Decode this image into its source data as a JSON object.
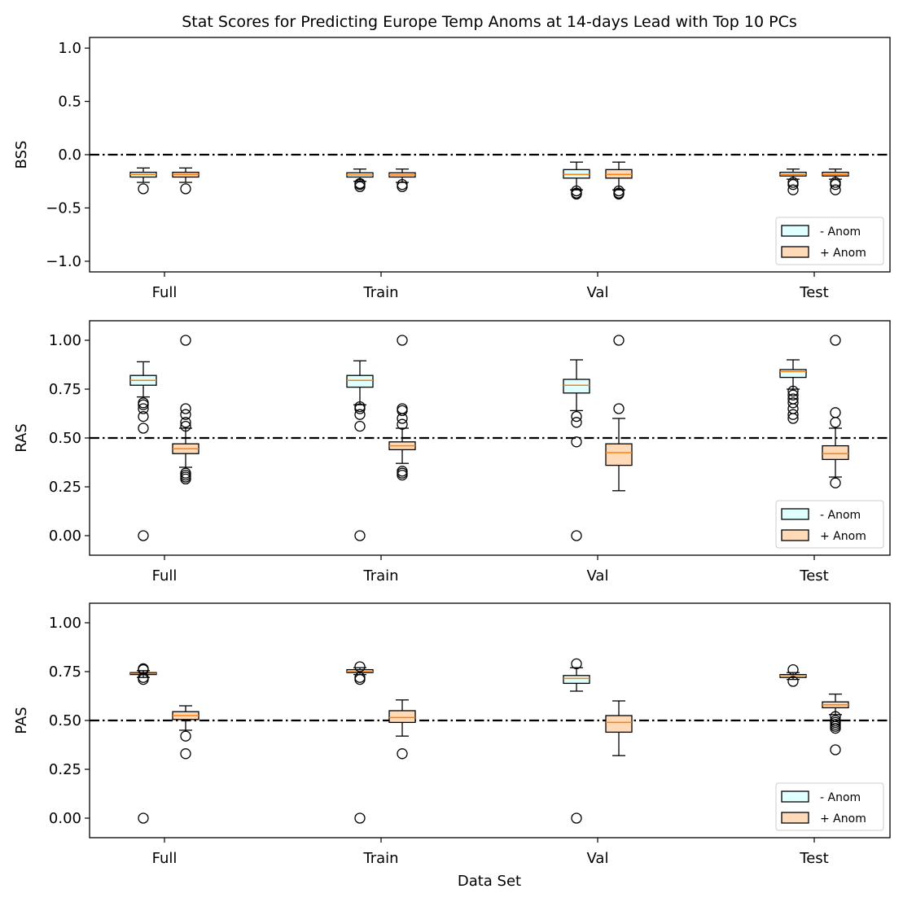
{
  "figure": {
    "title": "Stat Scores for Predicting Europe Temp Anoms at 14-days Lead with Top 10 PCs",
    "xlabel": "Data Set",
    "colors": {
      "neg_fill": "#e0ffff",
      "pos_fill": "#ffdab9",
      "median": "#ff7f0e",
      "edge": "#000000",
      "reference": "#000000"
    }
  },
  "chart_data": [
    {
      "type": "box",
      "ylabel": "BSS",
      "ylim": [
        -1.1,
        1.1
      ],
      "yticks": [
        1.0,
        0.5,
        0.0,
        -0.5,
        -1.0
      ],
      "ytick_labels": [
        "1.0",
        "0.5",
        "0.0",
        "−0.5",
        "−1.0"
      ],
      "categories": [
        "Full",
        "Train",
        "Val",
        "Test"
      ],
      "reference_line": 0.0,
      "legend": [
        "- Anom",
        "+ Anom"
      ],
      "legend_position": "lower right",
      "series": [
        {
          "name": "- Anom",
          "boxes": [
            {
              "whislo": -0.26,
              "q1": -0.21,
              "med": -0.185,
              "q3": -0.165,
              "whishi": -0.125,
              "fliers": [
                -0.32
              ]
            },
            {
              "whislo": -0.25,
              "q1": -0.21,
              "med": -0.19,
              "q3": -0.17,
              "whishi": -0.135,
              "fliers": [
                -0.27,
                -0.28,
                -0.3
              ]
            },
            {
              "whislo": -0.33,
              "q1": -0.22,
              "med": -0.185,
              "q3": -0.14,
              "whishi": -0.07,
              "fliers": [
                -0.34,
                -0.36,
                -0.37
              ]
            },
            {
              "whislo": -0.23,
              "q1": -0.2,
              "med": -0.185,
              "q3": -0.165,
              "whishi": -0.135,
              "fliers": [
                -0.26,
                -0.28,
                -0.33
              ]
            }
          ]
        },
        {
          "name": "+ Anom",
          "boxes": [
            {
              "whislo": -0.26,
              "q1": -0.21,
              "med": -0.185,
              "q3": -0.165,
              "whishi": -0.125,
              "fliers": [
                -0.32
              ]
            },
            {
              "whislo": -0.26,
              "q1": -0.21,
              "med": -0.19,
              "q3": -0.17,
              "whishi": -0.135,
              "fliers": [
                -0.28,
                -0.3
              ]
            },
            {
              "whislo": -0.33,
              "q1": -0.22,
              "med": -0.185,
              "q3": -0.14,
              "whishi": -0.07,
              "fliers": [
                -0.34,
                -0.36,
                -0.37
              ]
            },
            {
              "whislo": -0.23,
              "q1": -0.2,
              "med": -0.185,
              "q3": -0.165,
              "whishi": -0.135,
              "fliers": [
                -0.26,
                -0.28,
                -0.33
              ]
            }
          ]
        }
      ]
    },
    {
      "type": "box",
      "ylabel": "RAS",
      "ylim": [
        -0.1,
        1.1
      ],
      "yticks": [
        1.0,
        0.75,
        0.5,
        0.25,
        0.0
      ],
      "ytick_labels": [
        "1.00",
        "0.75",
        "0.50",
        "0.25",
        "0.00"
      ],
      "categories": [
        "Full",
        "Train",
        "Val",
        "Test"
      ],
      "reference_line": 0.5,
      "legend": [
        "- Anom",
        "+ Anom"
      ],
      "legend_position": "lower right",
      "series": [
        {
          "name": "- Anom",
          "boxes": [
            {
              "whislo": 0.71,
              "q1": 0.77,
              "med": 0.795,
              "q3": 0.82,
              "whishi": 0.89,
              "fliers": [
                0.68,
                0.67,
                0.65,
                0.61,
                0.55,
                0.0
              ]
            },
            {
              "whislo": 0.67,
              "q1": 0.76,
              "med": 0.795,
              "q3": 0.82,
              "whishi": 0.895,
              "fliers": [
                0.66,
                0.65,
                0.62,
                0.56,
                0.0
              ]
            },
            {
              "whislo": 0.64,
              "q1": 0.73,
              "med": 0.77,
              "q3": 0.8,
              "whishi": 0.9,
              "fliers": [
                0.61,
                0.58,
                0.48,
                0.0
              ]
            },
            {
              "whislo": 0.75,
              "q1": 0.81,
              "med": 0.84,
              "q3": 0.85,
              "whishi": 0.9,
              "fliers": [
                0.74,
                0.72,
                0.7,
                0.68,
                0.65,
                0.62,
                0.6
              ]
            }
          ]
        },
        {
          "name": "+ Anom",
          "boxes": [
            {
              "whislo": 0.35,
              "q1": 0.42,
              "med": 0.445,
              "q3": 0.47,
              "whishi": 0.55,
              "fliers": [
                1.0,
                0.65,
                0.62,
                0.58,
                0.56,
                0.32,
                0.31,
                0.3,
                0.29
              ]
            },
            {
              "whislo": 0.37,
              "q1": 0.44,
              "med": 0.46,
              "q3": 0.48,
              "whishi": 0.55,
              "fliers": [
                1.0,
                0.65,
                0.64,
                0.6,
                0.57,
                0.33,
                0.32,
                0.31
              ]
            },
            {
              "whislo": 0.23,
              "q1": 0.36,
              "med": 0.425,
              "q3": 0.47,
              "whishi": 0.6,
              "fliers": [
                1.0,
                0.65
              ]
            },
            {
              "whislo": 0.3,
              "q1": 0.39,
              "med": 0.42,
              "q3": 0.46,
              "whishi": 0.55,
              "fliers": [
                1.0,
                0.63,
                0.58,
                0.27
              ]
            }
          ]
        }
      ]
    },
    {
      "type": "box",
      "ylabel": "PAS",
      "ylim": [
        -0.1,
        1.1
      ],
      "yticks": [
        1.0,
        0.75,
        0.5,
        0.25,
        0.0
      ],
      "ytick_labels": [
        "1.00",
        "0.75",
        "0.50",
        "0.25",
        "0.00"
      ],
      "categories": [
        "Full",
        "Train",
        "Val",
        "Test"
      ],
      "reference_line": 0.5,
      "legend": [
        "- Anom",
        "+ Anom"
      ],
      "legend_position": "lower right",
      "series": [
        {
          "name": "- Anom",
          "boxes": [
            {
              "whislo": 0.72,
              "q1": 0.735,
              "med": 0.74,
              "q3": 0.745,
              "whishi": 0.755,
              "fliers": [
                0.765,
                0.76,
                0.72,
                0.71,
                0.0
              ]
            },
            {
              "whislo": 0.735,
              "q1": 0.745,
              "med": 0.75,
              "q3": 0.76,
              "whishi": 0.77,
              "fliers": [
                0.775,
                0.72,
                0.71,
                0.0
              ]
            },
            {
              "whislo": 0.65,
              "q1": 0.69,
              "med": 0.715,
              "q3": 0.73,
              "whishi": 0.77,
              "fliers": [
                0.79,
                0.0
              ]
            },
            {
              "whislo": 0.71,
              "q1": 0.72,
              "med": 0.73,
              "q3": 0.735,
              "whishi": 0.745,
              "fliers": [
                0.76,
                0.7
              ]
            }
          ]
        },
        {
          "name": "+ Anom",
          "boxes": [
            {
              "whislo": 0.45,
              "q1": 0.505,
              "med": 0.525,
              "q3": 0.545,
              "whishi": 0.575,
              "fliers": [
                0.42,
                0.33
              ]
            },
            {
              "whislo": 0.42,
              "q1": 0.49,
              "med": 0.515,
              "q3": 0.55,
              "whishi": 0.605,
              "fliers": [
                0.33
              ]
            },
            {
              "whislo": 0.32,
              "q1": 0.44,
              "med": 0.49,
              "q3": 0.525,
              "whishi": 0.6,
              "fliers": []
            },
            {
              "whislo": 0.53,
              "q1": 0.565,
              "med": 0.58,
              "q3": 0.595,
              "whishi": 0.635,
              "fliers": [
                0.52,
                0.5,
                0.49,
                0.48,
                0.47,
                0.46,
                0.35
              ]
            }
          ]
        }
      ]
    }
  ]
}
